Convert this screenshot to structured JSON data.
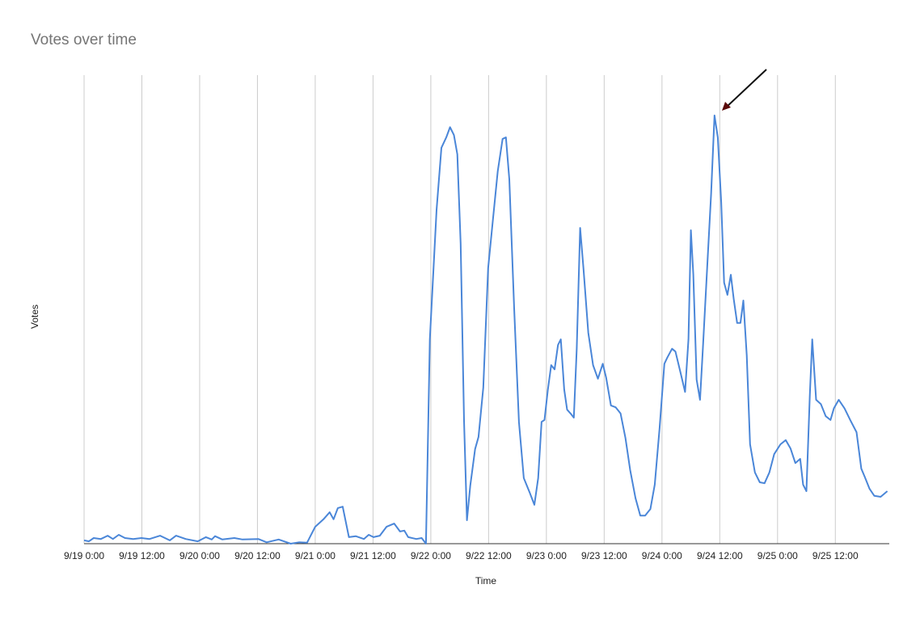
{
  "chart_data": {
    "type": "line",
    "title": "Votes over time",
    "x_label": "Time",
    "y_label": "Votes",
    "x": [
      0,
      1.0,
      2.0,
      3.5,
      4.9,
      6.0,
      7.2,
      8.5,
      10.2,
      11.9,
      13.6,
      15.8,
      17.8,
      19.1,
      21.1,
      23.6,
      25.3,
      26.5,
      27.2,
      28.7,
      31.2,
      32.9,
      36.2,
      37.9,
      40.4,
      42.9,
      44.6,
      46.3,
      48.0,
      49.7,
      51.0,
      51.8,
      52.7,
      53.7,
      55.0,
      56.4,
      58.1,
      59.1,
      60.1,
      61.4,
      62.8,
      64.4,
      65.6,
      66.5,
      67.3,
      69.0,
      70.1,
      71.0,
      71.8,
      73.2,
      74.2,
      75.2,
      76.0,
      76.8,
      77.5,
      78.2,
      78.9,
      79.5,
      80.2,
      81.2,
      81.9,
      82.9,
      83.9,
      84.9,
      85.9,
      86.9,
      87.6,
      88.3,
      89.3,
      90.3,
      91.3,
      92.5,
      93.5,
      94.3,
      95.0,
      95.6,
      96.3,
      97.0,
      97.7,
      98.4,
      99.0,
      99.7,
      100.3,
      101.0,
      101.7,
      102.3,
      103.0,
      103.7,
      104.7,
      105.7,
      106.7,
      107.7,
      108.4,
      109.4,
      110.4,
      111.4,
      112.4,
      113.4,
      114.5,
      115.5,
      116.5,
      117.6,
      118.5,
      119.5,
      120.5,
      121.1,
      122.1,
      122.8,
      123.8,
      124.8,
      125.5,
      126.0,
      126.5,
      127.2,
      127.9,
      128.5,
      129.4,
      130.2,
      130.9,
      131.6,
      132.3,
      132.9,
      133.6,
      134.3,
      134.9,
      135.6,
      136.3,
      136.9,
      137.6,
      138.3,
      139.3,
      140.3,
      141.3,
      142.3,
      143.3,
      144.6,
      145.7,
      146.7,
      147.7,
      148.7,
      149.3,
      150.0,
      150.7,
      151.2,
      152.0,
      153.0,
      154.0,
      155.0,
      155.7,
      156.7,
      157.9,
      159.1,
      160.4,
      161.4,
      162.1,
      163.1,
      164.1,
      165.4,
      166.8
    ],
    "series": [
      {
        "name": "Votes",
        "color": "#4a86d8",
        "values": [
          0.7,
          0.5,
          1.2,
          1.0,
          1.7,
          1.0,
          1.9,
          1.2,
          1.0,
          1.2,
          1.0,
          1.7,
          0.7,
          1.7,
          1.0,
          0.5,
          1.4,
          0.9,
          1.6,
          0.9,
          1.2,
          0.9,
          1.0,
          0.3,
          0.9,
          0,
          0.3,
          0.2,
          3.6,
          5.2,
          6.7,
          5.2,
          7.6,
          7.9,
          1.4,
          1.6,
          1.0,
          1.9,
          1.4,
          1.7,
          3.6,
          4.3,
          2.6,
          2.8,
          1.4,
          1.0,
          1.2,
          0,
          43.6,
          71.2,
          84.5,
          86.7,
          88.9,
          87.2,
          83.1,
          64.1,
          26.2,
          5.0,
          12.4,
          20.2,
          22.8,
          33.3,
          58.8,
          69.1,
          79.5,
          86.4,
          86.7,
          77.8,
          50.2,
          26.0,
          14.0,
          11.0,
          8.3,
          14.0,
          26.0,
          26.4,
          32.9,
          38.1,
          37.2,
          42.4,
          43.6,
          32.9,
          28.6,
          27.8,
          26.9,
          41.6,
          67.4,
          58.8,
          45.0,
          38.1,
          35.2,
          38.4,
          35.5,
          29.5,
          29.1,
          27.8,
          22.6,
          15.7,
          9.7,
          6.0,
          6.0,
          7.4,
          12.6,
          24.7,
          38.4,
          39.7,
          41.6,
          41.0,
          36.7,
          32.4,
          43.6,
          66.9,
          57.4,
          35.0,
          30.7,
          41.9,
          59.1,
          74.6,
          91.4,
          86.7,
          72.9,
          55.7,
          53.1,
          57.4,
          52.2,
          47.1,
          47.1,
          51.9,
          40.2,
          21.2,
          15.2,
          13.1,
          12.9,
          15.2,
          19.1,
          21.2,
          22.1,
          20.3,
          17.2,
          18.1,
          12.6,
          11.2,
          31.6,
          43.6,
          30.7,
          29.8,
          27.2,
          26.4,
          28.9,
          30.7,
          28.9,
          26.4,
          23.8,
          16.0,
          14.3,
          11.7,
          10.2,
          10.0,
          11.2
        ]
      }
    ],
    "xlim": [
      0,
      167.2
    ],
    "ylim": [
      0,
      100
    ],
    "xticks": [
      {
        "value": 0,
        "label": "9/19 0:00"
      },
      {
        "value": 12,
        "label": "9/19 12:00"
      },
      {
        "value": 24,
        "label": "9/20 0:00"
      },
      {
        "value": 36,
        "label": "9/20 12:00"
      },
      {
        "value": 48,
        "label": "9/21 0:00"
      },
      {
        "value": 60,
        "label": "9/21 12:00"
      },
      {
        "value": 72,
        "label": "9/22 0:00"
      },
      {
        "value": 84,
        "label": "9/22 12:00"
      },
      {
        "value": 96,
        "label": "9/23 0:00"
      },
      {
        "value": 108,
        "label": "9/23 12:00"
      },
      {
        "value": 120,
        "label": "9/24 0:00"
      },
      {
        "value": 132,
        "label": "9/24 12:00"
      },
      {
        "value": 144,
        "label": "9/25 0:00"
      },
      {
        "value": 156,
        "label": "9/25 12:00"
      }
    ],
    "grid": true
  }
}
